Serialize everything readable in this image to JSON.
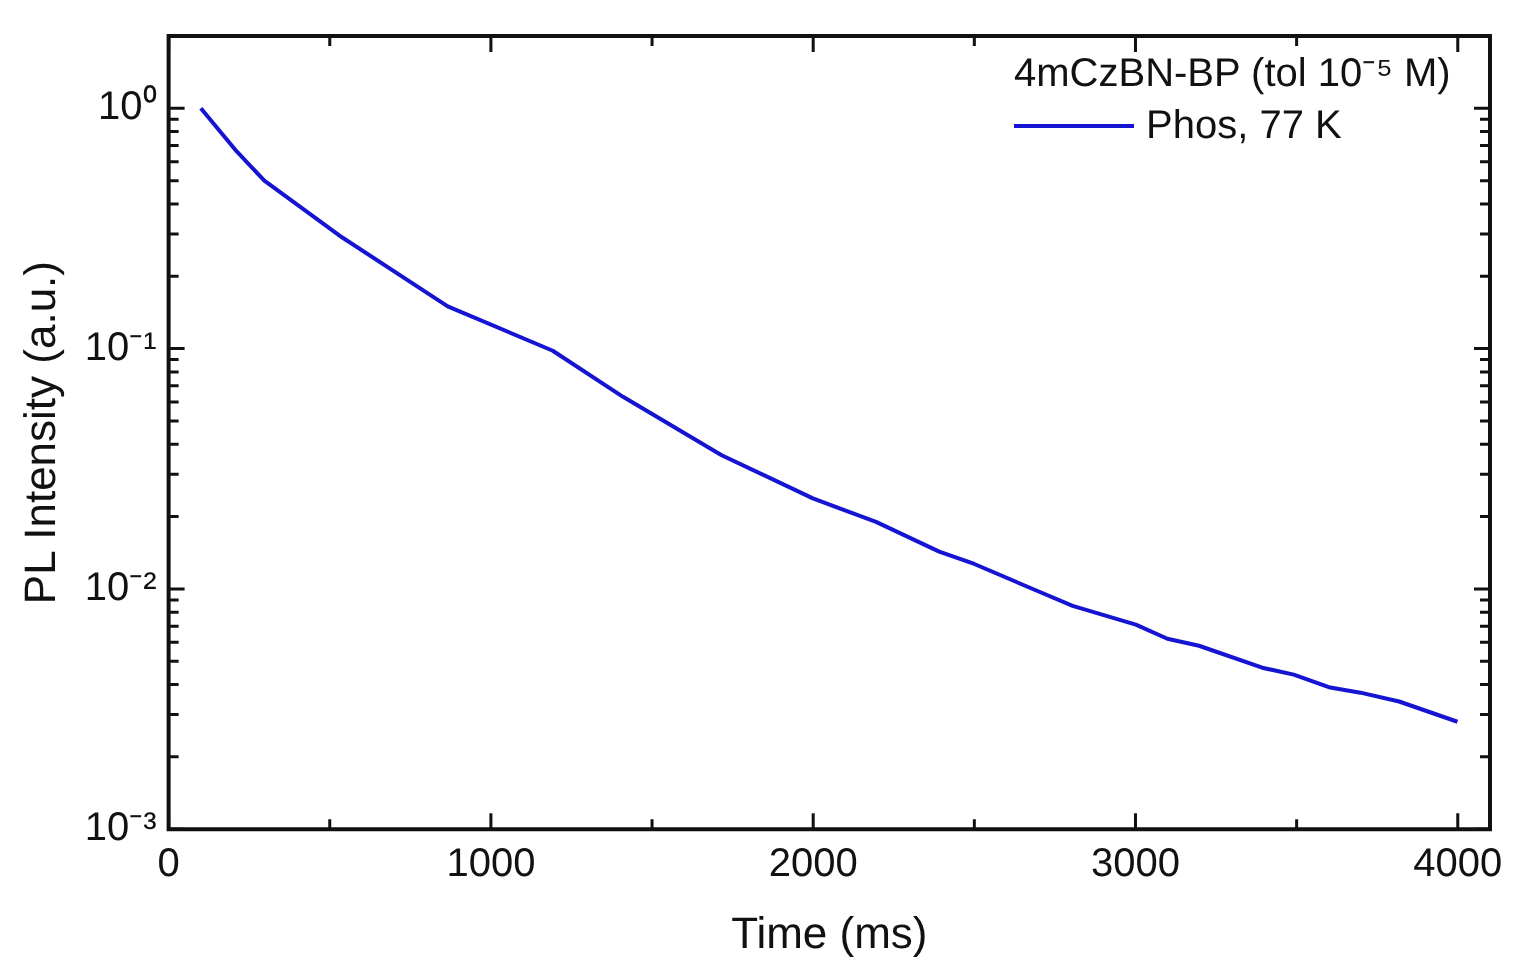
{
  "chart_data": {
    "type": "line",
    "xlabel": "Time (ms)",
    "ylabel": "PL Intensity (a.u.)",
    "legend_title": "4mCzBN-BP (tol 10⁻⁵ M)",
    "legend": "top right",
    "grid": false,
    "marker": "none",
    "line_style": "solid",
    "log": "y",
    "xlim": [
      0,
      4100
    ],
    "xticks": [
      0,
      {
        "value": 500,
        "label": null
      },
      1000,
      {
        "value": 1500,
        "label": null
      },
      2000,
      {
        "value": 2500,
        "label": null
      },
      3000,
      {
        "value": 3500,
        "label": null
      },
      4000
    ],
    "ylim": [
      0.001,
      2
    ],
    "yticks": [
      {
        "value": 0.001,
        "label": "10⁻³"
      },
      {
        "value": 0.002,
        "label": null
      },
      {
        "value": 0.003,
        "label": null
      },
      {
        "value": 0.004,
        "label": null
      },
      {
        "value": 0.005,
        "label": null
      },
      {
        "value": 0.006,
        "label": null
      },
      {
        "value": 0.007,
        "label": null
      },
      {
        "value": 0.008,
        "label": null
      },
      {
        "value": 0.009,
        "label": null
      },
      {
        "value": 0.01,
        "label": "10⁻²"
      },
      {
        "value": 0.02,
        "label": null
      },
      {
        "value": 0.03,
        "label": null
      },
      {
        "value": 0.04,
        "label": null
      },
      {
        "value": 0.05,
        "label": null
      },
      {
        "value": 0.06,
        "label": null
      },
      {
        "value": 0.07,
        "label": null
      },
      {
        "value": 0.08,
        "label": null
      },
      {
        "value": 0.09,
        "label": null
      },
      {
        "value": 0.1,
        "label": "10⁻¹"
      },
      {
        "value": 0.2,
        "label": null
      },
      {
        "value": 0.3,
        "label": null
      },
      {
        "value": 0.4,
        "label": null
      },
      {
        "value": 0.5,
        "label": null
      },
      {
        "value": 0.6,
        "label": null
      },
      {
        "value": 0.7,
        "label": null
      },
      {
        "value": 0.8,
        "label": null
      },
      {
        "value": 0.9,
        "label": null
      },
      {
        "value": 1,
        "label": "10⁰"
      },
      {
        "value": 2,
        "label": null
      }
    ],
    "series": [
      {
        "name": "Phos, 77 K",
        "color": "#1414d2",
        "x": [
          100,
          212,
          297,
          539,
          866,
          1192,
          1410,
          1716,
          1999,
          2195,
          2391,
          2500,
          2696,
          2805,
          3001,
          3099,
          3197,
          3393,
          3491,
          3600,
          3698,
          3818,
          3999
        ],
        "values": [
          1,
          0.66,
          0.5,
          0.29,
          0.15,
          0.098,
          0.063,
          0.036,
          0.0238,
          0.019,
          0.0143,
          0.0127,
          0.0098,
          0.0085,
          0.0071,
          0.0062,
          0.0058,
          0.0047,
          0.0044,
          0.0039,
          0.0037,
          0.0034,
          0.0028
        ]
      }
    ]
  }
}
